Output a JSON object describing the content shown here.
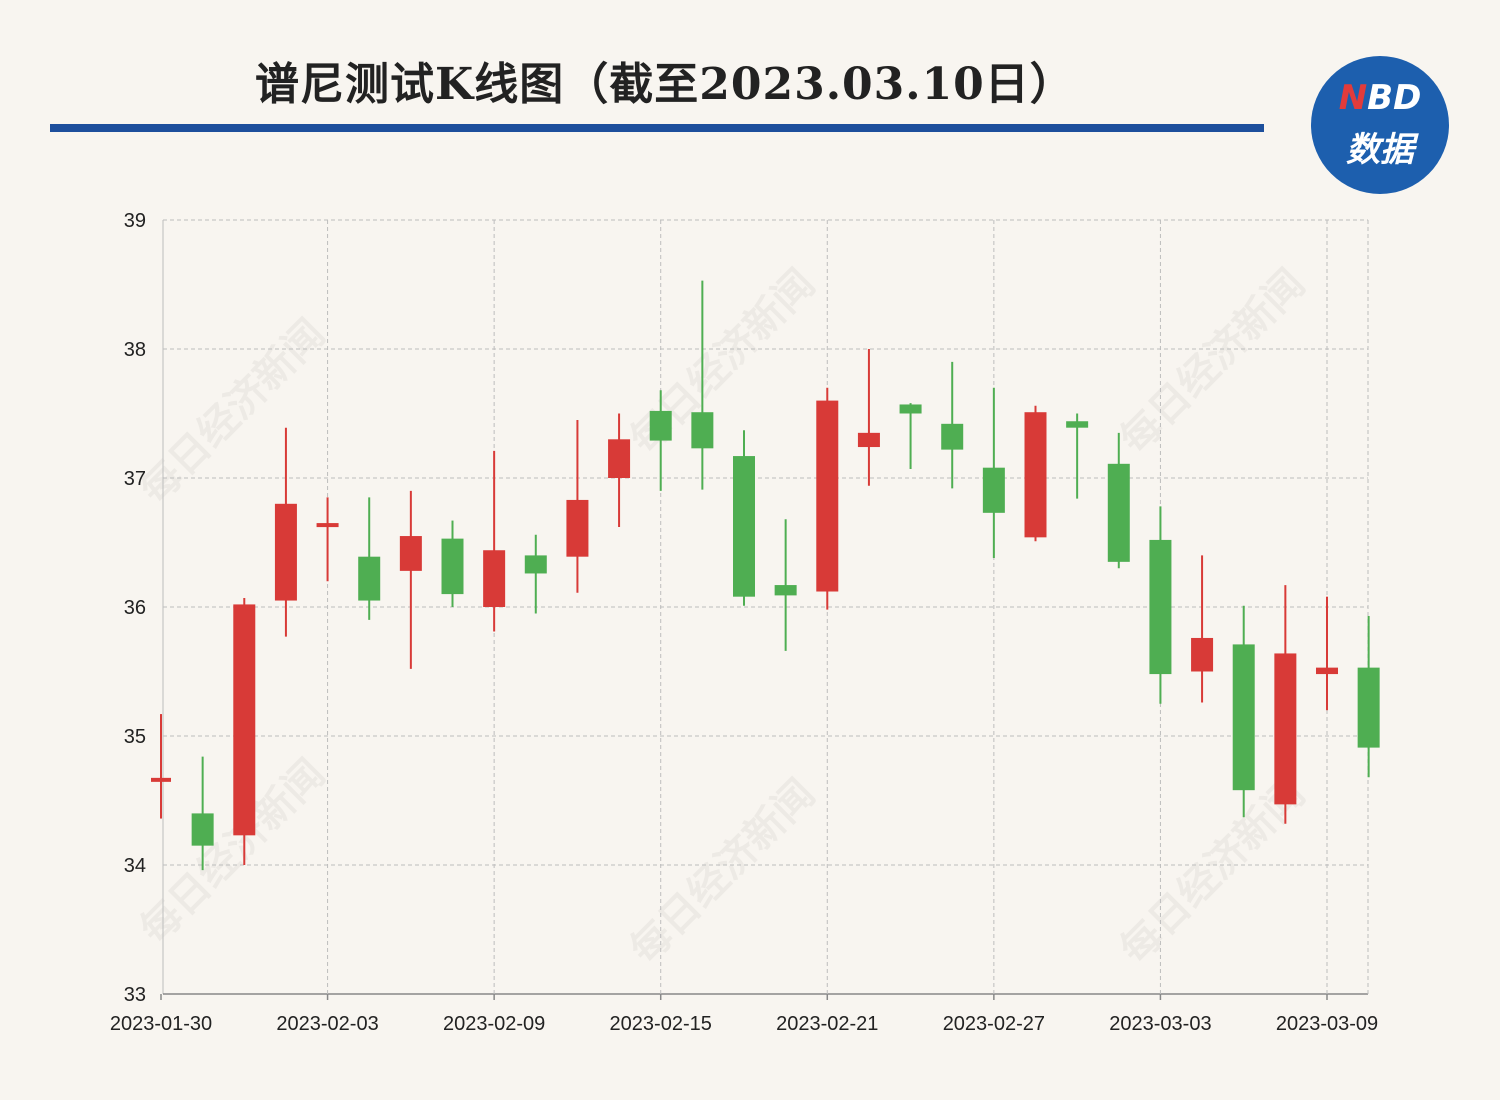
{
  "page": {
    "title": "谱尼测试K线图（截至2023.03.10日）",
    "logo_top": "NBD",
    "logo_bottom": "数据",
    "watermark": "每日经济新闻",
    "colors": {
      "up": "#d83a37",
      "down": "#4fae52",
      "accent": "#1d4f9c",
      "background": "#f8f5f0"
    }
  },
  "chart_data": {
    "type": "candlestick",
    "title": "谱尼测试K线图（截至2023.03.10日）",
    "ylim": [
      33,
      39
    ],
    "yticks": [
      "33",
      "34",
      "35",
      "36",
      "37",
      "38",
      "39"
    ],
    "xtick_labels": [
      "2023-01-30",
      "2023-02-03",
      "2023-02-09",
      "2023-02-15",
      "2023-02-21",
      "2023-02-27",
      "2023-03-03",
      "2023-03-09"
    ],
    "grid": true,
    "candles": [
      {
        "date": "2023-01-30",
        "open": 34.66,
        "close": 34.66,
        "high": 35.17,
        "low": 34.36
      },
      {
        "date": "2023-01-31",
        "open": 34.4,
        "close": 34.15,
        "high": 34.84,
        "low": 33.96
      },
      {
        "date": "2023-02-01",
        "open": 34.23,
        "close": 36.02,
        "high": 36.07,
        "low": 34.0
      },
      {
        "date": "2023-02-02",
        "open": 36.05,
        "close": 36.8,
        "high": 37.39,
        "low": 35.77
      },
      {
        "date": "2023-02-03",
        "open": 36.62,
        "close": 36.65,
        "high": 36.85,
        "low": 36.2
      },
      {
        "date": "2023-02-06",
        "open": 36.39,
        "close": 36.05,
        "high": 36.85,
        "low": 35.9
      },
      {
        "date": "2023-02-07",
        "open": 36.28,
        "close": 36.55,
        "high": 36.9,
        "low": 35.52
      },
      {
        "date": "2023-02-08",
        "open": 36.53,
        "close": 36.1,
        "high": 36.67,
        "low": 36.0
      },
      {
        "date": "2023-02-09",
        "open": 36.0,
        "close": 36.44,
        "high": 37.21,
        "low": 35.81
      },
      {
        "date": "2023-02-10",
        "open": 36.4,
        "close": 36.26,
        "high": 36.56,
        "low": 35.95
      },
      {
        "date": "2023-02-13",
        "open": 36.39,
        "close": 36.83,
        "high": 37.45,
        "low": 36.11
      },
      {
        "date": "2023-02-14",
        "open": 37.0,
        "close": 37.3,
        "high": 37.5,
        "low": 36.62
      },
      {
        "date": "2023-02-15",
        "open": 37.52,
        "close": 37.29,
        "high": 37.68,
        "low": 36.9
      },
      {
        "date": "2023-02-16",
        "open": 37.51,
        "close": 37.23,
        "high": 38.53,
        "low": 36.91
      },
      {
        "date": "2023-02-17",
        "open": 37.17,
        "close": 36.08,
        "high": 37.37,
        "low": 36.01
      },
      {
        "date": "2023-02-20",
        "open": 36.17,
        "close": 36.09,
        "high": 36.68,
        "low": 35.66
      },
      {
        "date": "2023-02-21",
        "open": 36.12,
        "close": 37.6,
        "high": 37.7,
        "low": 35.98
      },
      {
        "date": "2023-02-22",
        "open": 37.24,
        "close": 37.35,
        "high": 38.0,
        "low": 36.94
      },
      {
        "date": "2023-02-23",
        "open": 37.57,
        "close": 37.5,
        "high": 37.58,
        "low": 37.07
      },
      {
        "date": "2023-02-24",
        "open": 37.42,
        "close": 37.22,
        "high": 37.9,
        "low": 36.92
      },
      {
        "date": "2023-02-27",
        "open": 37.08,
        "close": 36.73,
        "high": 37.7,
        "low": 36.38
      },
      {
        "date": "2023-02-28",
        "open": 36.54,
        "close": 37.51,
        "high": 37.56,
        "low": 36.51
      },
      {
        "date": "2023-03-01",
        "open": 37.44,
        "close": 37.39,
        "high": 37.5,
        "low": 36.84
      },
      {
        "date": "2023-03-02",
        "open": 37.11,
        "close": 36.35,
        "high": 37.35,
        "low": 36.3
      },
      {
        "date": "2023-03-03",
        "open": 36.52,
        "close": 35.48,
        "high": 36.78,
        "low": 35.25
      },
      {
        "date": "2023-03-06",
        "open": 35.5,
        "close": 35.76,
        "high": 36.4,
        "low": 35.26
      },
      {
        "date": "2023-03-07",
        "open": 35.71,
        "close": 34.58,
        "high": 36.01,
        "low": 34.37
      },
      {
        "date": "2023-03-08",
        "open": 34.47,
        "close": 35.64,
        "high": 36.17,
        "low": 34.32
      },
      {
        "date": "2023-03-09",
        "open": 35.48,
        "close": 35.53,
        "high": 36.08,
        "low": 35.2
      },
      {
        "date": "2023-03-10",
        "open": 35.53,
        "close": 34.91,
        "high": 35.93,
        "low": 34.68
      }
    ]
  }
}
